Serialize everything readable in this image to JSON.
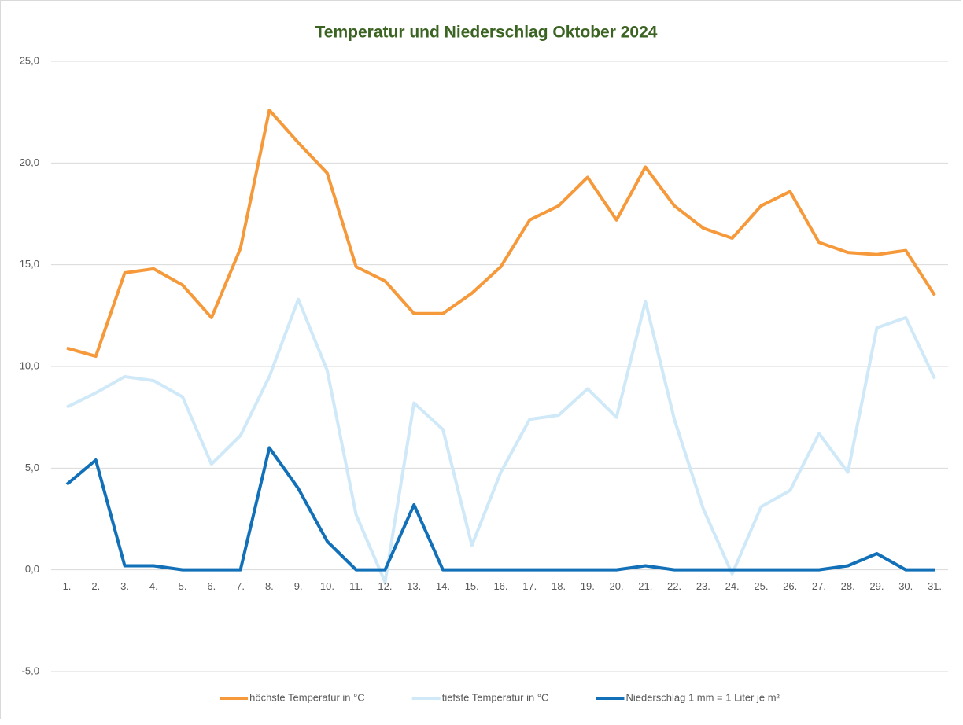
{
  "chart_data": {
    "type": "line",
    "title": "Temperatur und Niederschlag Oktober 2024",
    "categories": [
      "1.",
      "2.",
      "3.",
      "4.",
      "5.",
      "6.",
      "7.",
      "8.",
      "9.",
      "10.",
      "11.",
      "12.",
      "13.",
      "14.",
      "15.",
      "16.",
      "17.",
      "18.",
      "19.",
      "20.",
      "21.",
      "22.",
      "23.",
      "24.",
      "25.",
      "26.",
      "27.",
      "28.",
      "29.",
      "30.",
      "31."
    ],
    "series": [
      {
        "name": "höchste Temperatur in °C",
        "color": "#f5993b",
        "values": [
          10.9,
          10.5,
          14.6,
          14.8,
          14.0,
          12.4,
          15.8,
          22.6,
          21.0,
          19.5,
          14.9,
          14.2,
          12.6,
          12.6,
          13.6,
          14.9,
          17.2,
          17.9,
          19.3,
          17.2,
          19.8,
          17.9,
          16.8,
          16.3,
          17.9,
          18.6,
          16.1,
          15.6,
          15.5,
          15.7,
          13.5
        ]
      },
      {
        "name": "tiefste Temperatur in °C",
        "color": "#cfe9f8",
        "values": [
          8.0,
          8.7,
          9.5,
          9.3,
          8.5,
          5.2,
          6.6,
          9.5,
          13.3,
          9.8,
          2.7,
          -0.6,
          8.2,
          6.9,
          1.2,
          4.8,
          7.4,
          7.6,
          8.9,
          7.5,
          13.2,
          7.4,
          3.0,
          -0.2,
          3.1,
          3.9,
          6.7,
          4.8,
          11.9,
          12.4,
          9.4
        ]
      },
      {
        "name": "Niederschlag 1 mm =  1 Liter je m²",
        "color": "#1170b8",
        "values": [
          4.2,
          5.4,
          0.2,
          0.2,
          0,
          0,
          0,
          6.0,
          4.0,
          1.4,
          0,
          0,
          3.2,
          0,
          0,
          0,
          0,
          0,
          0,
          0,
          0.2,
          0,
          0,
          0,
          0,
          0,
          0,
          0.2,
          0.8,
          0,
          0
        ]
      }
    ],
    "ylim": [
      -5,
      25
    ],
    "yticks": [
      {
        "value": -5,
        "label": "-5,0"
      },
      {
        "value": 0,
        "label": "0,0"
      },
      {
        "value": 5,
        "label": "5,0"
      },
      {
        "value": 10,
        "label": "10,0"
      },
      {
        "value": 15,
        "label": "15,0"
      },
      {
        "value": 20,
        "label": "20,0"
      },
      {
        "value": 25,
        "label": "25,0"
      }
    ],
    "grid": true,
    "legend": "bottom"
  }
}
